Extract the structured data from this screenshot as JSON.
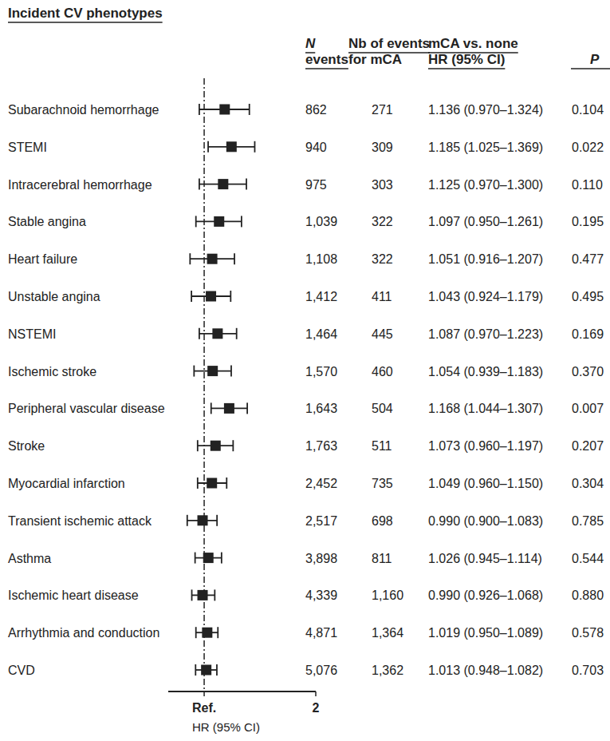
{
  "chart_data": {
    "type": "forest",
    "row_header": "Incident CV phenotypes",
    "categories": [
      "Subarachnoid hemorrhage",
      "STEMI",
      "Intracerebral hemorrhage",
      "Stable angina",
      "Heart failure",
      "Unstable angina",
      "NSTEMI",
      "Ischemic stroke",
      "Peripheral vascular disease",
      "Stroke",
      "Myocardial infarction",
      "Transient ischemic attack",
      "Asthma",
      "Ischemic heart disease",
      "Arrhythmia and conduction",
      "CVD"
    ],
    "values": [
      1.136,
      1.185,
      1.125,
      1.097,
      1.051,
      1.043,
      1.087,
      1.054,
      1.168,
      1.073,
      1.049,
      0.99,
      1.026,
      0.99,
      1.019,
      1.013
    ],
    "ci_low": [
      0.97,
      1.025,
      0.97,
      0.95,
      0.916,
      0.924,
      0.97,
      0.939,
      1.044,
      0.96,
      0.96,
      0.9,
      0.945,
      0.926,
      0.95,
      0.948
    ],
    "ci_high": [
      1.324,
      1.369,
      1.3,
      1.261,
      1.207,
      1.179,
      1.223,
      1.183,
      1.307,
      1.197,
      1.15,
      1.083,
      1.114,
      1.068,
      1.089,
      1.082
    ],
    "columns": [
      {
        "header": [
          "N",
          "events"
        ],
        "cells": [
          "862",
          "940",
          "975",
          "1,039",
          "1,108",
          "1,412",
          "1,464",
          "1,570",
          "1,643",
          "1,763",
          "2,452",
          "2,517",
          "3,898",
          "4,339",
          "4,871",
          "5,076"
        ]
      },
      {
        "header": [
          "Nb of events",
          "for mCA"
        ],
        "cells": [
          "271",
          "309",
          "303",
          "322",
          "322",
          "411",
          "445",
          "460",
          "504",
          "511",
          "735",
          "698",
          "811",
          "1,160",
          "1,364",
          "1,362"
        ]
      },
      {
        "header": [
          "mCA vs. none",
          "HR (95% CI)"
        ],
        "cells": [
          "1.136 (0.970–1.324)",
          "1.185 (1.025–1.369)",
          "1.125 (0.970–1.300)",
          "1.097 (0.950–1.261)",
          "1.051 (0.916–1.207)",
          "1.043 (0.924–1.179)",
          "1.087 (0.970–1.223)",
          "1.054 (0.939–1.183)",
          "1.168 (1.044–1.307)",
          "1.073 (0.960–1.197)",
          "1.049 (0.960–1.150)",
          "0.990 (0.900–1.083)",
          "1.026 (0.945–1.114)",
          "0.990 (0.926–1.068)",
          "1.019 (0.950–1.089)",
          "1.013 (0.948–1.082)"
        ]
      },
      {
        "header": [
          "P"
        ],
        "cells": [
          "0.104",
          "0.022",
          "0.110",
          "0.195",
          "0.477",
          "0.495",
          "0.169",
          "0.370",
          "0.007",
          "0.207",
          "0.304",
          "0.785",
          "0.544",
          "0.880",
          "0.578",
          "0.703"
        ]
      }
    ],
    "x_label": "HR (95% CI)",
    "xlim": [
      0.8,
      2
    ],
    "xticks": [
      {
        "value": 1,
        "label": "Ref."
      },
      2
    ],
    "log": "x",
    "color": "#222222"
  }
}
